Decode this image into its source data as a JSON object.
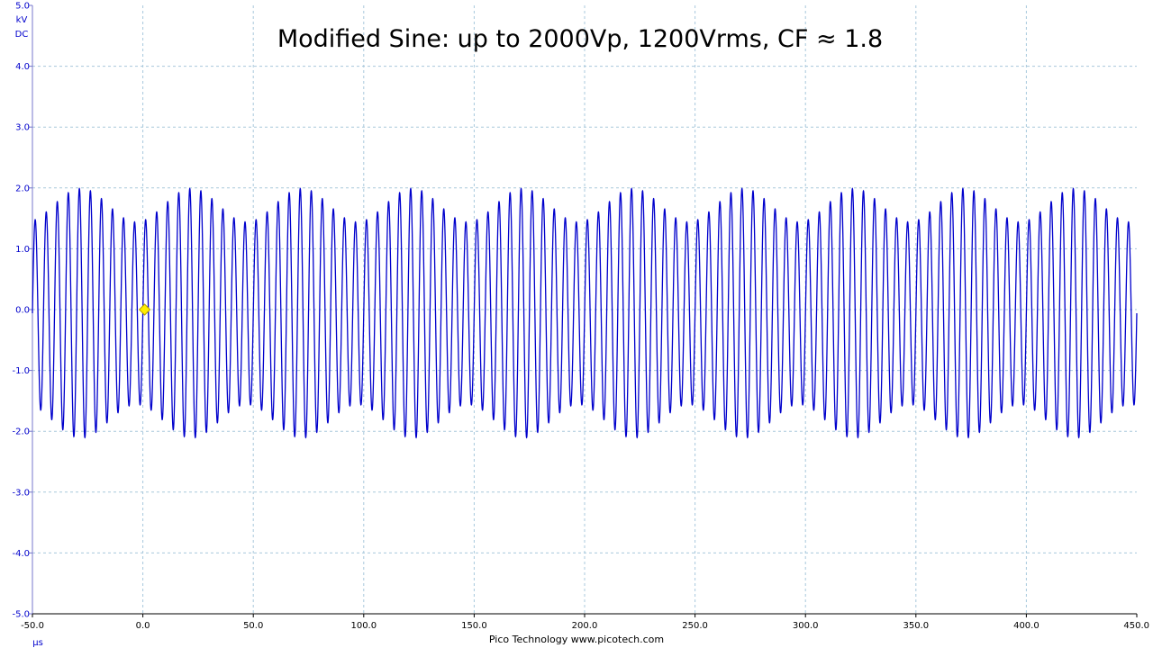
{
  "chart_data": {
    "type": "line",
    "title": "Modified Sine: up to 2000Vp, 1200Vrms, CF ≈ 1.8",
    "y_unit": "kV",
    "y_coupling": "DC",
    "x_unit": "µs",
    "xlim": [
      -50,
      450
    ],
    "ylim": [
      -5,
      5
    ],
    "x_ticks": [
      "-50.0",
      "0.0",
      "50.0",
      "100.0",
      "150.0",
      "200.0",
      "250.0",
      "300.0",
      "350.0",
      "400.0",
      "450.0"
    ],
    "y_ticks": [
      "5.0",
      "4.0",
      "3.0",
      "2.0",
      "1.0",
      "0.0",
      "-1.0",
      "-2.0",
      "-3.0",
      "-4.0",
      "-5.0"
    ],
    "grid": true,
    "series": [
      {
        "color": "#0000cc",
        "waveform": {
          "carrier_frequency_mhz": 0.2,
          "envelope_period_us": 50,
          "envelope_min_kv": 1.5,
          "envelope_max_kv": 2.05,
          "first_envelope_peak_us": -28
        },
        "envelope_peaks": [
          {
            "x": -28,
            "y": 2.0
          },
          {
            "x": 22,
            "y": 2.0
          },
          {
            "x": 72,
            "y": 2.0
          },
          {
            "x": 122,
            "y": 2.02
          },
          {
            "x": 172,
            "y": 2.0
          },
          {
            "x": 222,
            "y": 2.0
          },
          {
            "x": 272,
            "y": 2.0
          },
          {
            "x": 322,
            "y": 2.0
          },
          {
            "x": 372,
            "y": 2.0
          },
          {
            "x": 422,
            "y": 2.0
          }
        ]
      }
    ],
    "trigger_marker": {
      "x": 0,
      "y": 0,
      "color": "#ffee00"
    }
  },
  "footer": "Pico Technology  www.picotech.com"
}
